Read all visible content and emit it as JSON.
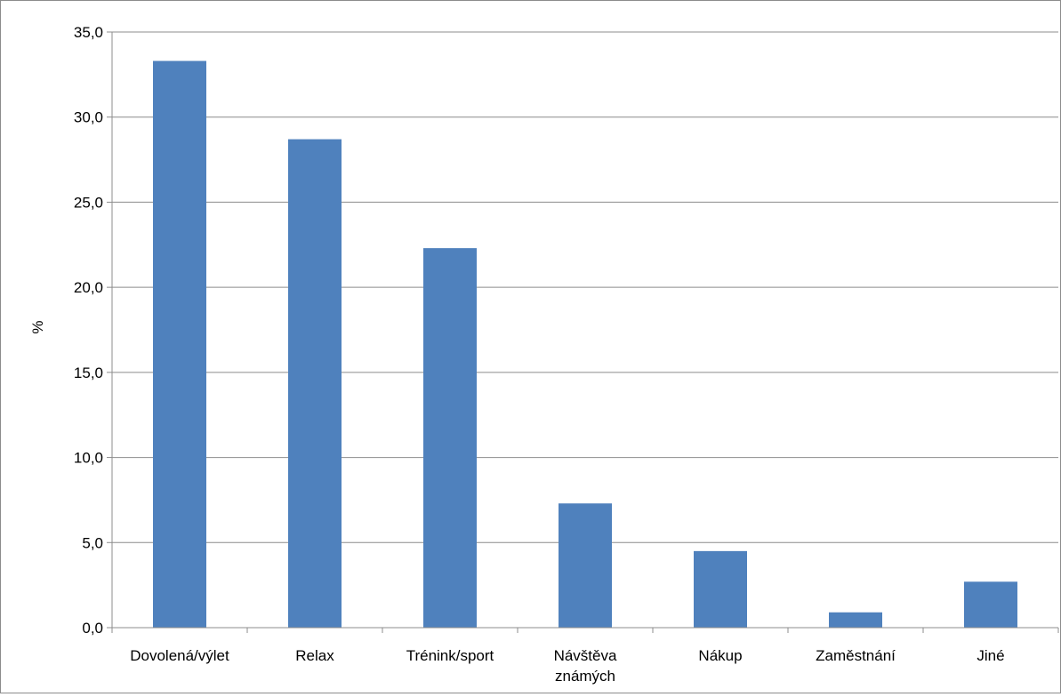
{
  "chart_data": {
    "type": "bar",
    "categories": [
      [
        "Dovolená/výlet"
      ],
      [
        "Relax"
      ],
      [
        "Trénink/sport"
      ],
      [
        "Návštěva",
        "známých"
      ],
      [
        "Nákup"
      ],
      [
        "Zaměstnání"
      ],
      [
        "Jiné"
      ]
    ],
    "values": [
      33.3,
      28.7,
      22.3,
      7.3,
      4.5,
      0.9,
      2.7
    ],
    "ylabel": "%",
    "ylim": [
      0,
      35
    ],
    "yticks": [
      "0,0",
      "5,0",
      "10,0",
      "15,0",
      "20,0",
      "25,0",
      "30,0",
      "35,0"
    ],
    "grid": true,
    "legend": "none",
    "bar_color": "#4f81bd",
    "grid_color": "#8c8c8c",
    "axis_color": "#8c8c8c"
  }
}
